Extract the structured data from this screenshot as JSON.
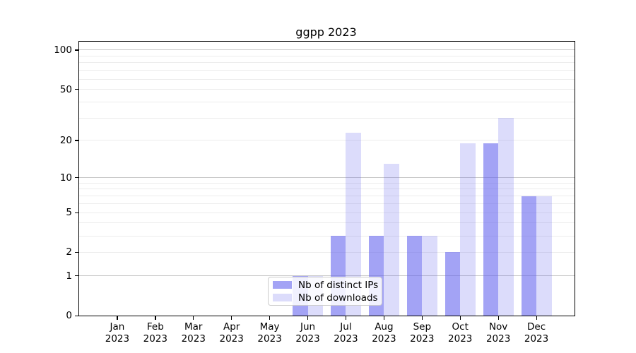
{
  "chart_data": {
    "type": "bar",
    "title": "ggpp 2023",
    "year": "2023",
    "months": [
      "Jan",
      "Feb",
      "Mar",
      "Apr",
      "May",
      "Jun",
      "Jul",
      "Aug",
      "Sep",
      "Oct",
      "Nov",
      "Dec"
    ],
    "categories": [
      "Jan 2023",
      "Feb 2023",
      "Mar 2023",
      "Apr 2023",
      "May 2023",
      "Jun 2023",
      "Jul 2023",
      "Aug 2023",
      "Sep 2023",
      "Oct 2023",
      "Nov 2023",
      "Dec 2023"
    ],
    "series": [
      {
        "name": "Nb of distinct IPs",
        "color": "rgba(102,102,238,0.60)",
        "values": [
          0,
          0,
          0,
          0,
          0,
          1,
          3,
          3,
          3,
          2,
          19,
          7
        ]
      },
      {
        "name": "Nb of downloads",
        "color": "rgba(102,102,238,0.23)",
        "values": [
          0,
          0,
          0,
          0,
          0,
          1,
          23,
          13,
          3,
          19,
          30,
          7
        ]
      }
    ],
    "yscale": "log1p",
    "ylim": [
      0,
      116
    ],
    "y_ticks": [
      0,
      1,
      2,
      5,
      10,
      20,
      50,
      100
    ],
    "y_gridlines_major": [
      1,
      10,
      100
    ],
    "y_gridlines_minor": [
      2,
      3,
      4,
      5,
      6,
      7,
      8,
      9,
      20,
      30,
      40,
      50,
      60,
      70,
      80,
      90
    ],
    "grid": true,
    "legend_position": "lower center",
    "colors": {
      "bar_distinct_ips": "rgba(102,102,238,0.60)",
      "bar_downloads": "rgba(102,102,238,0.23)",
      "grid_major": "#c6c6c6",
      "grid_minor": "#ececec",
      "axis": "#000000",
      "legend_border": "#cccccc"
    }
  }
}
